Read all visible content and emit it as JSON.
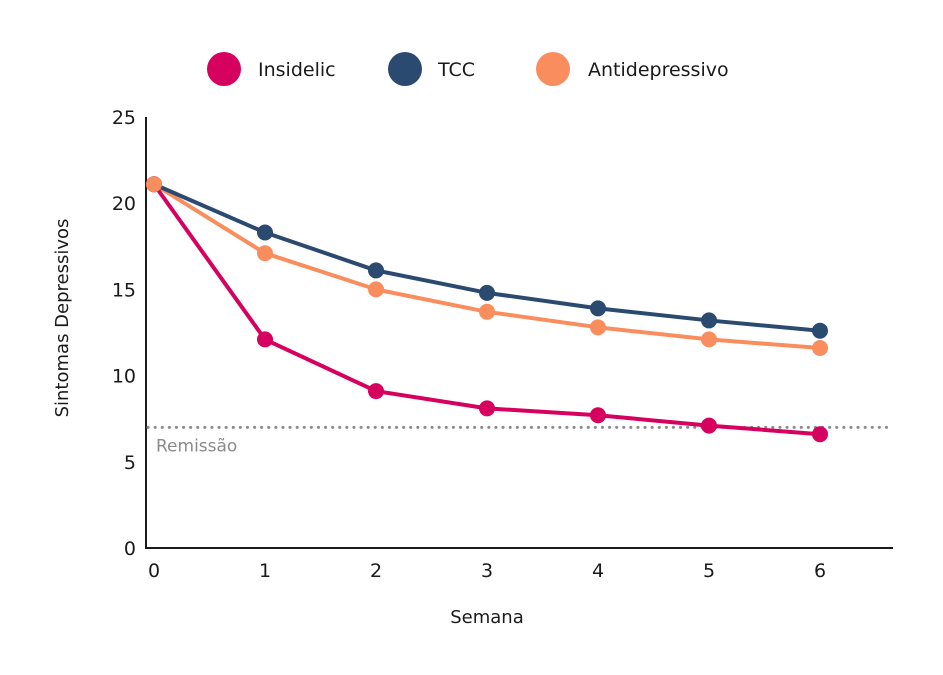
{
  "chart_data": {
    "type": "line",
    "title": "",
    "xlabel": "Semana",
    "ylabel": "Sintomas Depressivos",
    "x": [
      0,
      1,
      2,
      3,
      4,
      5,
      6
    ],
    "xticks": [
      "0",
      "1",
      "2",
      "3",
      "4",
      "5",
      "6"
    ],
    "yticks": [
      "0",
      "5",
      "10",
      "15",
      "20",
      "25"
    ],
    "ytick_values": [
      0,
      5,
      10,
      15,
      20,
      25
    ],
    "xlim": [
      0,
      6.7
    ],
    "ylim": [
      0,
      25
    ],
    "grid": false,
    "legend_position": "top-center",
    "series": [
      {
        "name": "Insidelic",
        "color": "#d6005f",
        "values": [
          21.1,
          12.1,
          9.1,
          8.1,
          7.7,
          7.1,
          6.6
        ]
      },
      {
        "name": "TCC",
        "color": "#2b4a70",
        "values": [
          21.1,
          18.3,
          16.1,
          14.8,
          13.9,
          13.2,
          12.6
        ]
      },
      {
        "name": "Antidepressivo",
        "color": "#f98d5e",
        "values": [
          21.1,
          17.1,
          15.0,
          13.7,
          12.8,
          12.1,
          11.6
        ]
      }
    ],
    "reference_line": {
      "label": "Remissão",
      "value": 7.0,
      "color": "#8a8a8a",
      "style": "dotted"
    }
  }
}
